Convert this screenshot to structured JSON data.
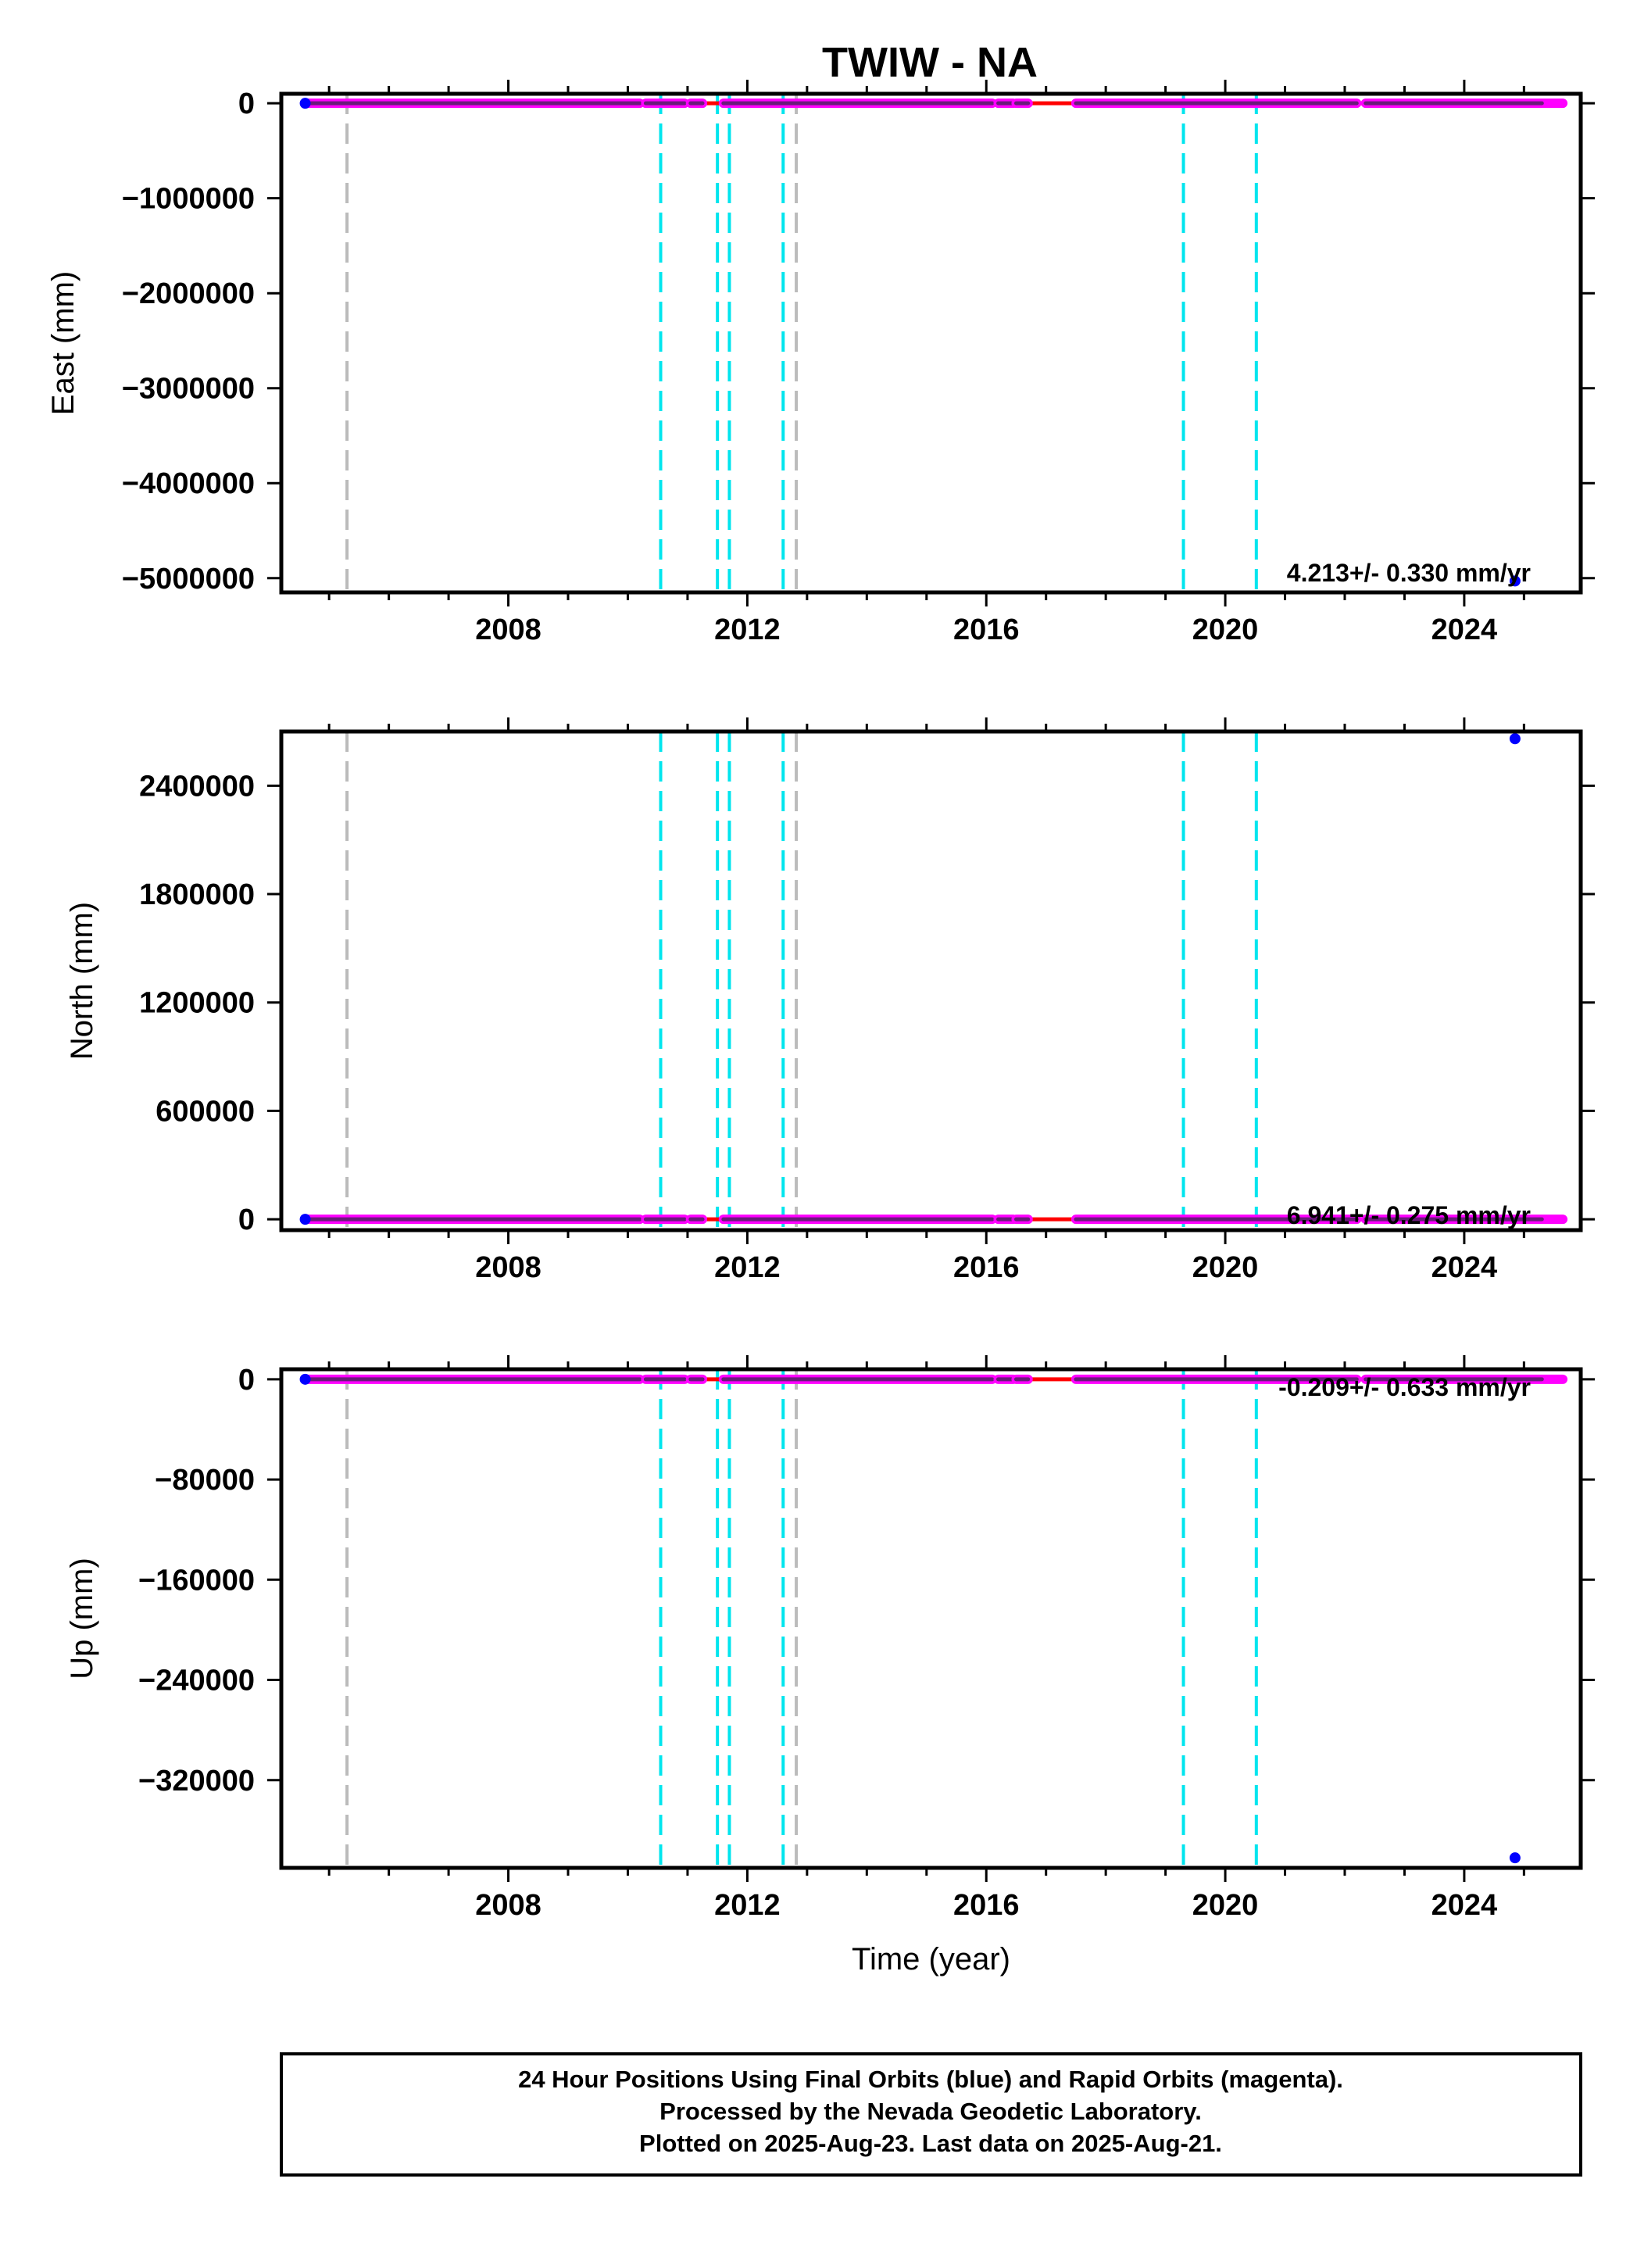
{
  "title": "TWIW - NA",
  "footer": {
    "line1": "24 Hour Positions Using Final Orbits (blue) and Rapid Orbits (magenta).",
    "line2": "Processed by the Nevada Geodetic Laboratory.",
    "line3": "Plotted on 2025-Aug-23. Last data on 2025-Aug-21."
  },
  "colors": {
    "final": "#0000ff",
    "rapid": "#ff00ff",
    "model": "#ff0000",
    "offset_equipment": "#00e5ee",
    "offset_other": "#bbbbbb"
  },
  "chart_data": [
    {
      "type": "scatter",
      "ylabel": "East (mm)",
      "xlabel": "",
      "xlim": [
        2004.2,
        2025.95
      ],
      "ylim": [
        -5150000,
        100000
      ],
      "x_ticks": [
        2008,
        2012,
        2016,
        2020,
        2024
      ],
      "y_ticks": [
        0,
        -1000000,
        -2000000,
        -3000000,
        -4000000,
        -5000000
      ],
      "y_tick_labels": [
        "0",
        "−1000000",
        "−2000000",
        "−3000000",
        "−4000000",
        "−5000000"
      ],
      "rate_label": "4.213+/- 0.330 mm/yr",
      "series": [
        {
          "style": "dense-band",
          "value": 0,
          "x_segments": [
            [
              2004.6,
              2010.2
            ],
            [
              2010.3,
              2010.95
            ],
            [
              2011.05,
              2011.25
            ],
            [
              2011.6,
              2016.1
            ],
            [
              2016.2,
              2016.45
            ],
            [
              2016.5,
              2016.7
            ],
            [
              2017.5,
              2022.2
            ],
            [
              2022.35,
              2025.65
            ]
          ],
          "final_end": 2025.3
        },
        {
          "style": "outlier",
          "points": [
            [
              2024.85,
              -5030000
            ]
          ]
        }
      ]
    },
    {
      "type": "scatter",
      "ylabel": "North (mm)",
      "xlabel": "",
      "xlim": [
        2004.2,
        2025.95
      ],
      "ylim": [
        -60000,
        2700000
      ],
      "x_ticks": [
        2008,
        2012,
        2016,
        2020,
        2024
      ],
      "y_ticks": [
        2400000,
        1800000,
        1200000,
        600000,
        0
      ],
      "y_tick_labels": [
        "2400000",
        "1800000",
        "1200000",
        "600000",
        "0"
      ],
      "rate_label": "6.941+/- 0.275 mm/yr",
      "series": [
        {
          "style": "dense-band",
          "value": 0,
          "x_segments": [
            [
              2004.6,
              2010.2
            ],
            [
              2010.3,
              2010.95
            ],
            [
              2011.05,
              2011.25
            ],
            [
              2011.6,
              2016.1
            ],
            [
              2016.2,
              2016.45
            ],
            [
              2016.5,
              2016.7
            ],
            [
              2017.5,
              2022.2
            ],
            [
              2022.35,
              2025.65
            ]
          ],
          "final_end": 2025.3
        },
        {
          "style": "outlier",
          "points": [
            [
              2024.85,
              2660000
            ]
          ]
        }
      ]
    },
    {
      "type": "scatter",
      "ylabel": "Up (mm)",
      "xlabel": "Time (year)",
      "xlim": [
        2004.2,
        2025.95
      ],
      "ylim": [
        -390000,
        8000
      ],
      "x_ticks": [
        2008,
        2012,
        2016,
        2020,
        2024
      ],
      "y_ticks": [
        0,
        -80000,
        -160000,
        -240000,
        -320000
      ],
      "y_tick_labels": [
        "0",
        "−80000",
        "−160000",
        "−240000",
        "−320000"
      ],
      "rate_label": "-0.209+/- 0.633 mm/yr",
      "series": [
        {
          "style": "dense-band",
          "value": 0,
          "x_segments": [
            [
              2004.6,
              2010.2
            ],
            [
              2010.3,
              2010.95
            ],
            [
              2011.05,
              2011.25
            ],
            [
              2011.6,
              2016.1
            ],
            [
              2016.2,
              2016.45
            ],
            [
              2016.5,
              2016.7
            ],
            [
              2017.5,
              2022.2
            ],
            [
              2022.35,
              2025.65
            ]
          ],
          "final_end": 2025.3
        },
        {
          "style": "outlier",
          "points": [
            [
              2024.85,
              -382000
            ]
          ]
        }
      ]
    }
  ],
  "offsets": {
    "equipment": [
      2010.55,
      2011.5,
      2011.7,
      2012.6,
      2019.3,
      2020.52
    ],
    "other": [
      2005.3,
      2012.82
    ]
  }
}
